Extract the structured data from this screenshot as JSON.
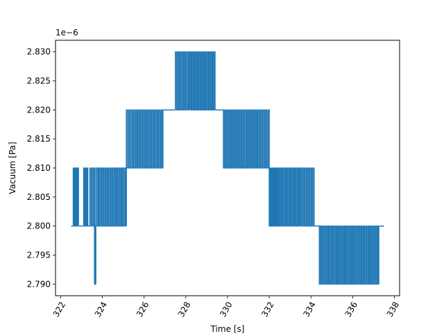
{
  "chart_data": {
    "type": "line",
    "title": "",
    "xlabel": "Time [s]",
    "ylabel": "Vacuum [Pa]",
    "y_offset_text": "1e−6",
    "xlim": [
      321.75,
      338.25
    ],
    "ylim": [
      2.788,
      2.832
    ],
    "x_ticks": [
      322,
      324,
      326,
      328,
      330,
      332,
      334,
      336,
      338
    ],
    "x_tick_labels": [
      "322",
      "324",
      "326",
      "328",
      "330",
      "332",
      "334",
      "336",
      "338"
    ],
    "x_tick_rotation": 60,
    "y_ticks": [
      2.79,
      2.795,
      2.8,
      2.805,
      2.81,
      2.815,
      2.82,
      2.825,
      2.83
    ],
    "y_tick_labels": [
      "2.790",
      "2.795",
      "2.800",
      "2.805",
      "2.810",
      "2.815",
      "2.820",
      "2.825",
      "2.830"
    ],
    "grid": false,
    "legend": "none",
    "series": [
      {
        "name": "",
        "color": "#1f77b4",
        "segments": [
          {
            "x": [
              322.5,
              322.6
            ],
            "y": [
              2.8,
              2.8
            ]
          },
          {
            "x": [
              322.6,
              322.85
            ],
            "y": [
              2.8,
              2.81
            ]
          },
          {
            "x": [
              322.85,
              323.1
            ],
            "y": [
              2.8,
              2.8
            ]
          },
          {
            "x": [
              323.1,
              323.3
            ],
            "y": [
              2.8,
              2.81
            ]
          },
          {
            "x": [
              323.3,
              323.4
            ],
            "y": [
              2.8,
              2.8
            ]
          },
          {
            "x": [
              323.4,
              323.62
            ],
            "y": [
              2.8,
              2.81
            ]
          },
          {
            "x": [
              323.62,
              323.68
            ],
            "y": [
              2.79,
              2.8
            ]
          },
          {
            "x": [
              323.68,
              323.8
            ],
            "y": [
              2.8,
              2.81
            ]
          },
          {
            "x": [
              323.8,
              325.15
            ],
            "y": [
              2.8,
              2.81
            ]
          },
          {
            "x": [
              325.15,
              325.6
            ],
            "y": [
              2.81,
              2.82
            ]
          },
          {
            "x": [
              325.6,
              326.9
            ],
            "y": [
              2.81,
              2.82
            ]
          },
          {
            "x": [
              326.9,
              327.5
            ],
            "y": [
              2.82,
              2.82
            ]
          },
          {
            "x": [
              327.5,
              328.2
            ],
            "y": [
              2.82,
              2.83
            ]
          },
          {
            "x": [
              328.2,
              329.4
            ],
            "y": [
              2.82,
              2.83
            ]
          },
          {
            "x": [
              329.4,
              329.8
            ],
            "y": [
              2.82,
              2.82
            ]
          },
          {
            "x": [
              329.8,
              331.4
            ],
            "y": [
              2.81,
              2.82
            ]
          },
          {
            "x": [
              331.4,
              332.0
            ],
            "y": [
              2.81,
              2.82
            ]
          },
          {
            "x": [
              332.0,
              332.4
            ],
            "y": [
              2.8,
              2.81
            ]
          },
          {
            "x": [
              332.4,
              333.5
            ],
            "y": [
              2.8,
              2.81
            ]
          },
          {
            "x": [
              333.5,
              334.15
            ],
            "y": [
              2.8,
              2.81
            ]
          },
          {
            "x": [
              334.15,
              334.4
            ],
            "y": [
              2.8,
              2.8
            ]
          },
          {
            "x": [
              334.4,
              337.25
            ],
            "y": [
              2.79,
              2.8
            ]
          },
          {
            "x": [
              337.25,
              337.5
            ],
            "y": [
              2.8,
              2.8
            ]
          }
        ]
      }
    ]
  }
}
